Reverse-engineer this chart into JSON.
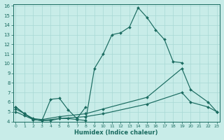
{
  "bg_color": "#c8ece8",
  "grid_color": "#a8d8d4",
  "line_color": "#1a6b60",
  "xlabel": "Humidex (Indice chaleur)",
  "x_ticks": [
    0,
    1,
    2,
    3,
    4,
    5,
    6,
    7,
    8,
    9,
    10,
    11,
    12,
    13,
    14,
    15,
    16,
    17,
    18,
    19,
    20,
    21,
    22,
    23
  ],
  "y_ticks": [
    4,
    5,
    6,
    7,
    8,
    9,
    10,
    11,
    12,
    13,
    14,
    15,
    16
  ],
  "xlim": [
    -0.3,
    23.3
  ],
  "ylim": [
    4,
    16.2
  ],
  "series": [
    {
      "x": [
        0,
        1,
        2,
        3,
        4,
        5,
        6,
        7,
        8,
        9,
        10,
        11,
        12,
        13,
        14,
        15,
        16,
        17,
        18,
        19
      ],
      "y": [
        5.5,
        4.8,
        4.2,
        4.1,
        4.1,
        4.3,
        4.3,
        4.2,
        4.1,
        9.5,
        11.0,
        13.0,
        13.2,
        13.8,
        15.8,
        14.8,
        13.5,
        12.5,
        10.2,
        10.1
      ]
    },
    {
      "x": [
        0,
        1,
        2,
        3,
        4,
        5,
        6,
        7,
        8
      ],
      "y": [
        5.5,
        4.8,
        4.2,
        4.1,
        6.3,
        6.4,
        5.2,
        4.3,
        5.5
      ]
    },
    {
      "x": [
        0,
        1,
        2,
        3,
        5,
        8,
        10,
        15,
        19,
        20,
        22,
        23
      ],
      "y": [
        5.3,
        4.8,
        4.3,
        4.2,
        4.5,
        4.8,
        5.3,
        6.5,
        9.5,
        7.3,
        6.0,
        5.0
      ]
    },
    {
      "x": [
        0,
        1,
        2,
        3,
        5,
        8,
        10,
        15,
        19,
        20,
        22,
        23
      ],
      "y": [
        5.0,
        4.6,
        4.2,
        4.1,
        4.3,
        4.5,
        4.8,
        5.8,
        7.0,
        6.0,
        5.5,
        5.0
      ]
    }
  ]
}
